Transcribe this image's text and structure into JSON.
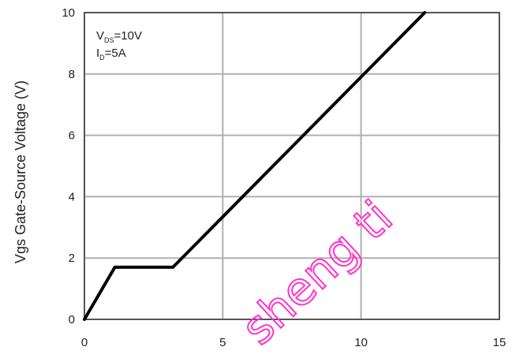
{
  "chart_data": {
    "type": "line",
    "title": "",
    "xlabel": "",
    "ylabel": "Vgs Gate-Source Voltage (V)",
    "xlim": [
      0,
      15
    ],
    "ylim": [
      0,
      10
    ],
    "x_ticks": [
      "0",
      "5",
      "10",
      "15"
    ],
    "y_ticks": [
      "0",
      "2",
      "4",
      "6",
      "8",
      "10"
    ],
    "grid": true,
    "series": [
      {
        "x": [
          0,
          1.1,
          3.2,
          12.3
        ],
        "y": [
          0,
          1.7,
          1.7,
          10
        ]
      }
    ],
    "annotations": {
      "vds": {
        "symbol": "V",
        "subscript": "DS",
        "value": "=10V"
      },
      "id": {
        "symbol": "I",
        "subscript": "D",
        "value": "=5A"
      }
    },
    "watermark": "sheng ti",
    "colors": {
      "line": "#000000",
      "grid": "#b0b0b0",
      "frame": "#555555",
      "watermark": "#ff33cc"
    }
  }
}
